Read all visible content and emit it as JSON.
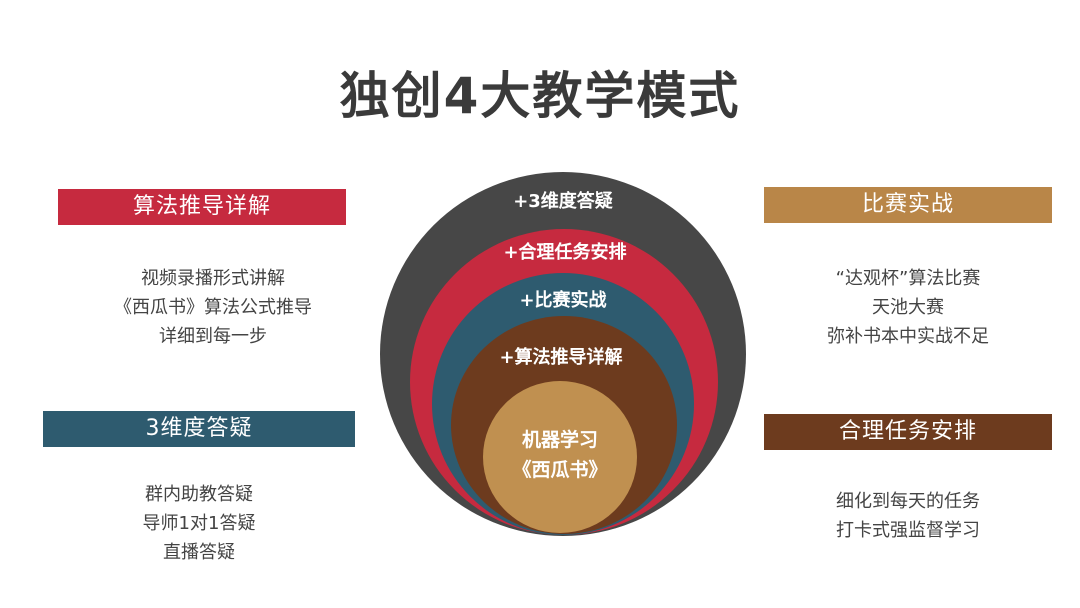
{
  "title": "独创4大教学模式",
  "colors": {
    "red": "#c62a3f",
    "teal": "#2e5b6f",
    "tan": "#b98648",
    "brown": "#6d3b1e",
    "dark": "#474747",
    "core": "#c09050"
  },
  "left": {
    "box1": {
      "label": "算法推导详解",
      "lines": [
        "视频录播形式讲解",
        "《西瓜书》算法公式推导",
        "详细到每一步"
      ]
    },
    "box2": {
      "label": "3维度答疑",
      "lines": [
        "群内助教答疑",
        "导师1对1答疑",
        "直播答疑"
      ]
    }
  },
  "right": {
    "box1": {
      "label": "比赛实战",
      "lines": [
        "“达观杯”算法比赛",
        "天池大赛",
        "弥补书本中实战不足"
      ]
    },
    "box2": {
      "label": "合理任务安排",
      "lines": [
        "细化到每天的任务",
        "打卡式强监督学习"
      ]
    }
  },
  "rings": [
    "+3维度答疑",
    "+合理任务安排",
    "+比赛实战",
    "+算法推导详解"
  ],
  "core": {
    "line1": "机器学习",
    "line2": "《西瓜书》"
  }
}
